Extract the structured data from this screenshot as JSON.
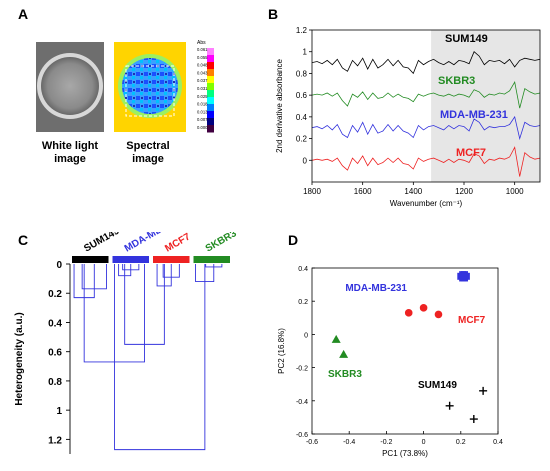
{
  "panels": {
    "a": {
      "letter": "A",
      "white_light_label": "White light\nimage",
      "spectral_label": "Spectral\nimage",
      "colorbar_title": "Abs",
      "colorbar_ticks": [
        "0.061",
        "0.055",
        "0.048",
        "0.043",
        "0.037",
        "0.031",
        "0.025",
        "0.018",
        "0.013",
        "0.007",
        "0.000"
      ],
      "colorbar_colors": [
        "#ff80ff",
        "#ff00ff",
        "#ff0000",
        "#ff8000",
        "#ffff00",
        "#80ff00",
        "#00ff80",
        "#00ffff",
        "#0080ff",
        "#0000ff",
        "#000080",
        "#400040"
      ]
    },
    "b": {
      "letter": "B"
    },
    "c": {
      "letter": "C"
    },
    "d": {
      "letter": "D"
    }
  },
  "chart_data": [
    {
      "id": "spectra",
      "type": "line",
      "xlabel": "Wavenumber (cm⁻¹)",
      "ylabel": "2nd derivative absorbance",
      "xlim": [
        1800,
        900
      ],
      "ylim": [
        -0.2,
        1.2
      ],
      "x_ticks": [
        1800,
        1600,
        1400,
        1200,
        1000
      ],
      "y_ticks": [
        0,
        0.2,
        0.4,
        0.6,
        0.8,
        1,
        1.2
      ],
      "shaded_region": [
        1330,
        900
      ],
      "x": [
        1800,
        1780,
        1760,
        1740,
        1720,
        1700,
        1680,
        1660,
        1640,
        1620,
        1600,
        1580,
        1560,
        1540,
        1520,
        1500,
        1480,
        1460,
        1440,
        1420,
        1400,
        1380,
        1360,
        1340,
        1320,
        1300,
        1280,
        1260,
        1240,
        1220,
        1200,
        1180,
        1160,
        1140,
        1120,
        1100,
        1080,
        1060,
        1040,
        1020,
        1000,
        980,
        960,
        940,
        920,
        900
      ],
      "series": [
        {
          "name": "SUM149",
          "color": "#000000",
          "offset": 0.9,
          "values": [
            0,
            0.01,
            -0.01,
            0.02,
            -0.02,
            0.03,
            -0.05,
            -0.08,
            0.02,
            -0.03,
            0.04,
            -0.06,
            0.03,
            -0.05,
            -0.02,
            0.03,
            -0.03,
            0.02,
            -0.04,
            -0.05,
            -0.1,
            0.02,
            -0.02,
            0.01,
            0.03,
            0,
            -0.02,
            0.01,
            -0.02,
            0.02,
            0.01,
            -0.01,
            0.1,
            0.06,
            -0.02,
            0.02,
            0.01,
            0.02,
            -0.01,
            0.03,
            -0.04,
            0.02,
            0.04,
            0.03,
            0.02,
            0.03
          ]
        },
        {
          "name": "SKBR3",
          "color": "#228B22",
          "offset": 0.6,
          "values": [
            0,
            0.01,
            0,
            0.02,
            -0.01,
            0.02,
            -0.05,
            -0.1,
            0.01,
            -0.02,
            0.03,
            -0.04,
            0.02,
            -0.03,
            -0.02,
            0.02,
            -0.02,
            0.01,
            -0.02,
            -0.03,
            -0.06,
            0.01,
            -0.01,
            0.01,
            0.02,
            0,
            -0.01,
            0.01,
            -0.01,
            0.01,
            0,
            -0.02,
            0.05,
            0.03,
            -0.02,
            0.01,
            0,
            0.02,
            0.01,
            0.04,
            0.12,
            -0.12,
            0.06,
            0.03,
            0.01,
            0.02
          ]
        },
        {
          "name": "MDA-MB-231",
          "color": "#3333dd",
          "offset": 0.3,
          "values": [
            0,
            0.01,
            -0.01,
            0.02,
            -0.02,
            0.03,
            -0.06,
            -0.09,
            0.02,
            -0.04,
            0.05,
            -0.06,
            0.03,
            -0.05,
            -0.03,
            0.03,
            -0.03,
            0.02,
            -0.03,
            -0.05,
            -0.09,
            0.02,
            -0.02,
            0.01,
            0.02,
            0,
            -0.02,
            0.02,
            -0.01,
            0.02,
            0.01,
            -0.03,
            0.08,
            0.05,
            -0.02,
            0.01,
            0,
            0.01,
            0.01,
            0.03,
            0.1,
            -0.1,
            0.05,
            0.02,
            0.01,
            0.02
          ]
        },
        {
          "name": "MCF7",
          "color": "#ee2222",
          "offset": 0.0,
          "values": [
            0,
            0.01,
            0,
            0.01,
            -0.01,
            0.02,
            -0.05,
            -0.09,
            0.02,
            -0.03,
            0.04,
            -0.05,
            0.02,
            -0.04,
            -0.02,
            0.02,
            -0.02,
            0.02,
            -0.03,
            -0.04,
            -0.08,
            0.02,
            -0.01,
            0.01,
            0.02,
            0,
            -0.02,
            0.01,
            -0.02,
            0.01,
            0,
            -0.02,
            0.06,
            0.04,
            -0.03,
            0.01,
            0,
            0.02,
            0.01,
            0.03,
            0.12,
            -0.15,
            0.07,
            0.03,
            0.01,
            0.02
          ]
        }
      ]
    },
    {
      "id": "dendrogram",
      "type": "dendrogram",
      "ylabel": "Heterogeneity (a.u.)",
      "ylim": [
        0,
        1.3
      ],
      "y_ticks": [
        0,
        0.2,
        0.4,
        0.6,
        0.8,
        1,
        1.2
      ],
      "groups": [
        {
          "name": "SUM149",
          "color": "#000000"
        },
        {
          "name": "MDA-MB-231",
          "color": "#3333dd"
        },
        {
          "name": "MCF7",
          "color": "#ee2222"
        },
        {
          "name": "SKBR3",
          "color": "#228B22"
        }
      ],
      "line_color": "#3333dd",
      "merges": [
        {
          "left": 0.3,
          "right": 0.9,
          "height": 0.17
        },
        {
          "left": 0.1,
          "right": 0.6,
          "height": 0.23
        },
        {
          "left": 1.3,
          "right": 1.7,
          "height": 0.04
        },
        {
          "left": 1.2,
          "right": 1.5,
          "height": 0.08
        },
        {
          "left": 2.3,
          "right": 2.7,
          "height": 0.09
        },
        {
          "left": 2.15,
          "right": 2.5,
          "height": 0.15
        },
        {
          "left": 1.35,
          "right": 2.33,
          "height": 0.55
        },
        {
          "left": 0.35,
          "right": 1.84,
          "height": 0.67
        },
        {
          "left": 3.35,
          "right": 3.75,
          "height": 0.02
        },
        {
          "left": 3.1,
          "right": 3.55,
          "height": 0.12
        },
        {
          "left": 1.1,
          "right": 3.33,
          "height": 1.27
        }
      ]
    },
    {
      "id": "pca",
      "type": "scatter",
      "xlabel": "PC1 (73.8%)",
      "ylabel": "PC2 (16.8%)",
      "xlim": [
        -0.6,
        0.4
      ],
      "ylim": [
        -0.6,
        0.4
      ],
      "x_ticks": [
        -0.6,
        -0.4,
        -0.2,
        0,
        0.2,
        0.4
      ],
      "y_ticks": [
        -0.6,
        -0.4,
        -0.2,
        0,
        0.2,
        0.4
      ],
      "series": [
        {
          "name": "MDA-MB-231",
          "color": "#3333dd",
          "marker": "square",
          "points": [
            [
              0.2,
              0.35
            ],
            [
              0.22,
              0.34
            ],
            [
              0.21,
              0.36
            ],
            [
              0.23,
              0.35
            ],
            [
              0.22,
              0.36
            ],
            [
              0.21,
              0.34
            ]
          ]
        },
        {
          "name": "MCF7",
          "color": "#ee2222",
          "marker": "circle",
          "points": [
            [
              -0.08,
              0.13
            ],
            [
              0,
              0.16
            ],
            [
              0.08,
              0.12
            ]
          ]
        },
        {
          "name": "SKBR3",
          "color": "#228B22",
          "marker": "triangle",
          "points": [
            [
              -0.47,
              -0.03
            ],
            [
              -0.43,
              -0.12
            ]
          ]
        },
        {
          "name": "SUM149",
          "color": "#000000",
          "marker": "plus",
          "points": [
            [
              0.14,
              -0.43
            ],
            [
              0.32,
              -0.34
            ],
            [
              0.27,
              -0.51
            ]
          ]
        }
      ]
    }
  ]
}
